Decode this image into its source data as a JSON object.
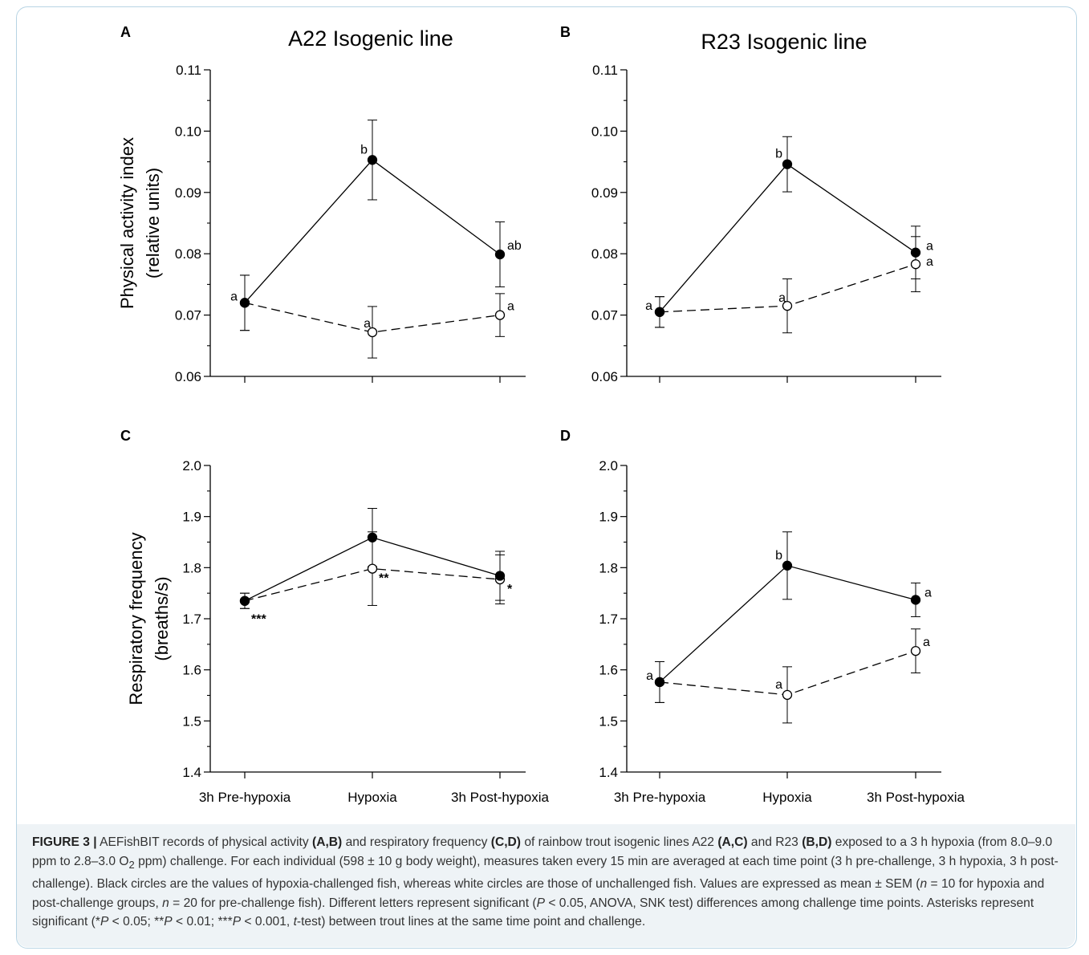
{
  "chart_data": [
    {
      "panel": "A",
      "type": "line",
      "title": "A22 Isogenic line",
      "ylabel": "Physical activity index (relative units)",
      "ylabel_lines": [
        "Physical activity index",
        "(relative units)"
      ],
      "ylim": [
        0.06,
        0.11
      ],
      "yticks": [
        0.06,
        0.07,
        0.08,
        0.09,
        0.1,
        0.11
      ],
      "ytick_labels": [
        "0.06",
        "0.07",
        "0.08",
        "0.09",
        "0.10",
        "0.11"
      ],
      "categories": [
        "3h Pre-hypoxia",
        "Hypoxia",
        "3h Post-hypoxia"
      ],
      "series": [
        {
          "marker": "filled",
          "dash": "solid",
          "values": [
            0.072,
            0.0953,
            0.0799
          ],
          "err": [
            0.0045,
            0.0065,
            0.0053
          ],
          "labels": [
            "",
            "b",
            "ab"
          ]
        },
        {
          "marker": "open",
          "dash": "dashed",
          "values": [
            0.072,
            0.0672,
            0.07
          ],
          "err": [
            0.0045,
            0.0042,
            0.0035
          ],
          "labels": [
            "a",
            "a",
            "a"
          ]
        }
      ]
    },
    {
      "panel": "B",
      "type": "line",
      "title": "R23 Isogenic line",
      "ylim": [
        0.06,
        0.11
      ],
      "yticks": [
        0.06,
        0.07,
        0.08,
        0.09,
        0.1,
        0.11
      ],
      "ytick_labels": [
        "0.06",
        "0.07",
        "0.08",
        "0.09",
        "0.10",
        "0.11"
      ],
      "categories": [
        "3h Pre-hypoxia",
        "Hypoxia",
        "3h Post-hypoxia"
      ],
      "series": [
        {
          "marker": "filled",
          "dash": "solid",
          "values": [
            0.0705,
            0.0946,
            0.0802
          ],
          "err": [
            0.0025,
            0.0045,
            0.0043
          ],
          "labels": [
            "",
            "b",
            "a"
          ]
        },
        {
          "marker": "open",
          "dash": "dashed",
          "values": [
            0.0705,
            0.0715,
            0.0783
          ],
          "err": [
            0.0025,
            0.0044,
            0.0045
          ],
          "labels": [
            "a",
            "a",
            "a"
          ]
        }
      ]
    },
    {
      "panel": "C",
      "type": "line",
      "ylabel": "Respiratory frequency (breaths/s)",
      "ylabel_lines": [
        "Respiratory frequency",
        "(breaths/s)"
      ],
      "ylim": [
        1.4,
        2.0
      ],
      "yticks": [
        1.4,
        1.5,
        1.6,
        1.7,
        1.8,
        1.9,
        2.0
      ],
      "ytick_labels": [
        "1.4",
        "1.5",
        "1.6",
        "1.7",
        "1.8",
        "1.9",
        "2.0"
      ],
      "categories": [
        "3h Pre-hypoxia",
        "Hypoxia",
        "3h Post-hypoxia"
      ],
      "series": [
        {
          "marker": "filled",
          "dash": "solid",
          "values": [
            1.735,
            1.859,
            1.784
          ],
          "err": [
            0.015,
            0.057,
            0.048
          ],
          "labels": [
            "",
            "",
            ""
          ]
        },
        {
          "marker": "open",
          "dash": "dashed",
          "values": [
            1.735,
            1.798,
            1.777
          ],
          "err": [
            0.015,
            0.072,
            0.048
          ],
          "labels": [
            "***",
            "**",
            "*"
          ]
        }
      ]
    },
    {
      "panel": "D",
      "type": "line",
      "ylim": [
        1.4,
        2.0
      ],
      "yticks": [
        1.4,
        1.5,
        1.6,
        1.7,
        1.8,
        1.9,
        2.0
      ],
      "ytick_labels": [
        "1.4",
        "1.5",
        "1.6",
        "1.7",
        "1.8",
        "1.9",
        "2.0"
      ],
      "categories": [
        "3h Pre-hypoxia",
        "Hypoxia",
        "3h Post-hypoxia"
      ],
      "series": [
        {
          "marker": "filled",
          "dash": "solid",
          "values": [
            1.576,
            1.804,
            1.737
          ],
          "err": [
            0.04,
            0.066,
            0.033
          ],
          "labels": [
            "",
            "b",
            "a"
          ]
        },
        {
          "marker": "open",
          "dash": "dashed",
          "values": [
            1.576,
            1.551,
            1.637
          ],
          "err": [
            0.04,
            0.055,
            0.043
          ],
          "labels": [
            "a",
            "a",
            "a"
          ]
        }
      ]
    }
  ],
  "caption": {
    "figure_label": "FIGURE 3 |",
    "segments": [
      {
        "t": " AEFishBIT records of physical activity ",
        "s": "n"
      },
      {
        "t": "(A,B)",
        "s": "b"
      },
      {
        "t": " and respiratory frequency ",
        "s": "n"
      },
      {
        "t": "(C,D)",
        "s": "b"
      },
      {
        "t": " of rainbow trout isogenic lines A22 ",
        "s": "n"
      },
      {
        "t": "(A,C)",
        "s": "b"
      },
      {
        "t": " and R23 ",
        "s": "n"
      },
      {
        "t": "(B,D)",
        "s": "b"
      },
      {
        "t": " exposed to a 3 h hypoxia (from 8.0–9.0 ppm to 2.8–3.0 O",
        "s": "n"
      },
      {
        "t": "2",
        "s": "sub"
      },
      {
        "t": " ppm) challenge. For each individual (598 ± 10 g body weight), measures taken every 15 min are averaged at each time point (3 h pre-challenge, 3 h hypoxia, 3 h post-challenge). Black circles are the values of hypoxia-challenged fish, whereas white circles are those of unchallenged fish. Values are expressed as mean ± SEM (",
        "s": "n"
      },
      {
        "t": "n",
        "s": "i"
      },
      {
        "t": " = 10 for hypoxia and post-challenge groups, ",
        "s": "n"
      },
      {
        "t": "n",
        "s": "i"
      },
      {
        "t": " = 20 for pre-challenge fish). Different letters represent significant (",
        "s": "n"
      },
      {
        "t": "P",
        "s": "i"
      },
      {
        "t": " < 0.05, ANOVA, SNK test) differences among challenge time points. Asterisks represent significant (*",
        "s": "n"
      },
      {
        "t": "P",
        "s": "i"
      },
      {
        "t": " < 0.05; **",
        "s": "n"
      },
      {
        "t": "P",
        "s": "i"
      },
      {
        "t": " < 0.01; ***",
        "s": "n"
      },
      {
        "t": "P",
        "s": "i"
      },
      {
        "t": " < 0.001, ",
        "s": "n"
      },
      {
        "t": "t",
        "s": "i"
      },
      {
        "t": "-test) between trout lines at the same time point and challenge.",
        "s": "n"
      }
    ]
  }
}
